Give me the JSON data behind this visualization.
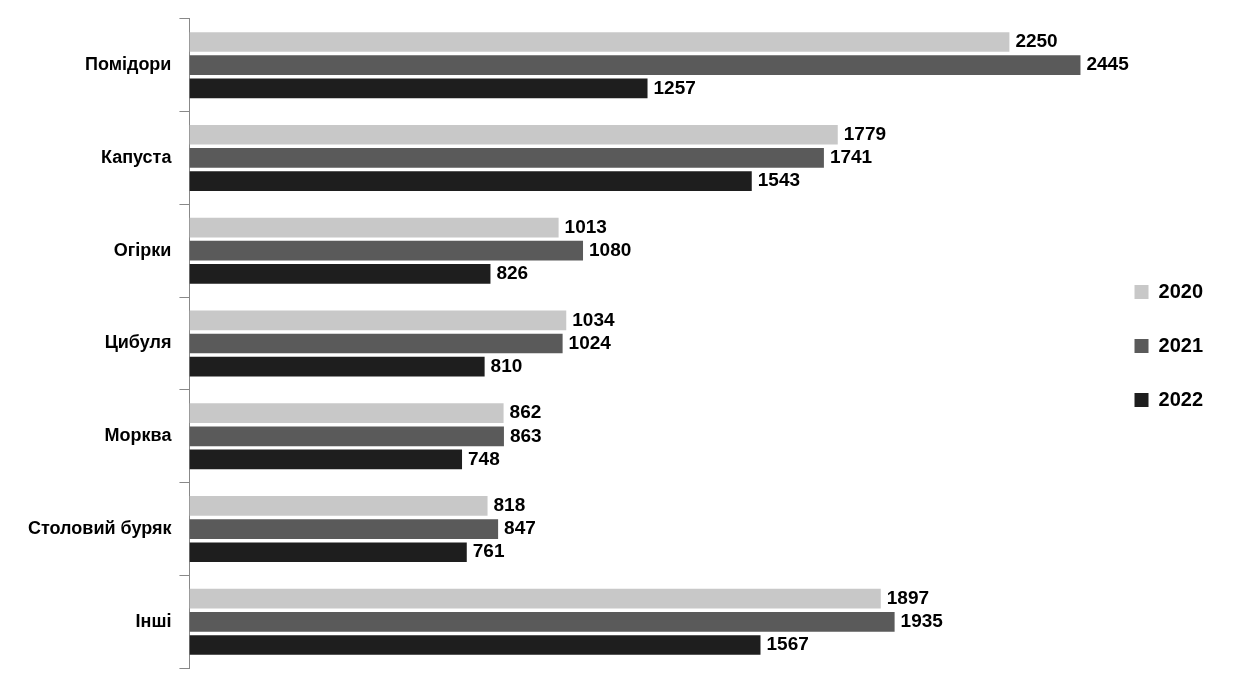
{
  "chart_data": {
    "type": "bar",
    "orientation": "horizontal",
    "categories": [
      "Помідори",
      "Капуста",
      "Огірки",
      "Цибуля",
      "Морква",
      "Столовий буряк",
      "Інші"
    ],
    "series": [
      {
        "name": "2020",
        "color": "#c8c8c8",
        "values": [
          2250,
          1779,
          1013,
          1034,
          862,
          818,
          1897
        ]
      },
      {
        "name": "2021",
        "color": "#5a5a5a",
        "values": [
          2445,
          1741,
          1080,
          1024,
          863,
          847,
          1935
        ]
      },
      {
        "name": "2022",
        "color": "#1e1e1e",
        "values": [
          1257,
          1543,
          826,
          810,
          748,
          761,
          1567
        ]
      }
    ],
    "data_labels": true,
    "legend": "right"
  }
}
